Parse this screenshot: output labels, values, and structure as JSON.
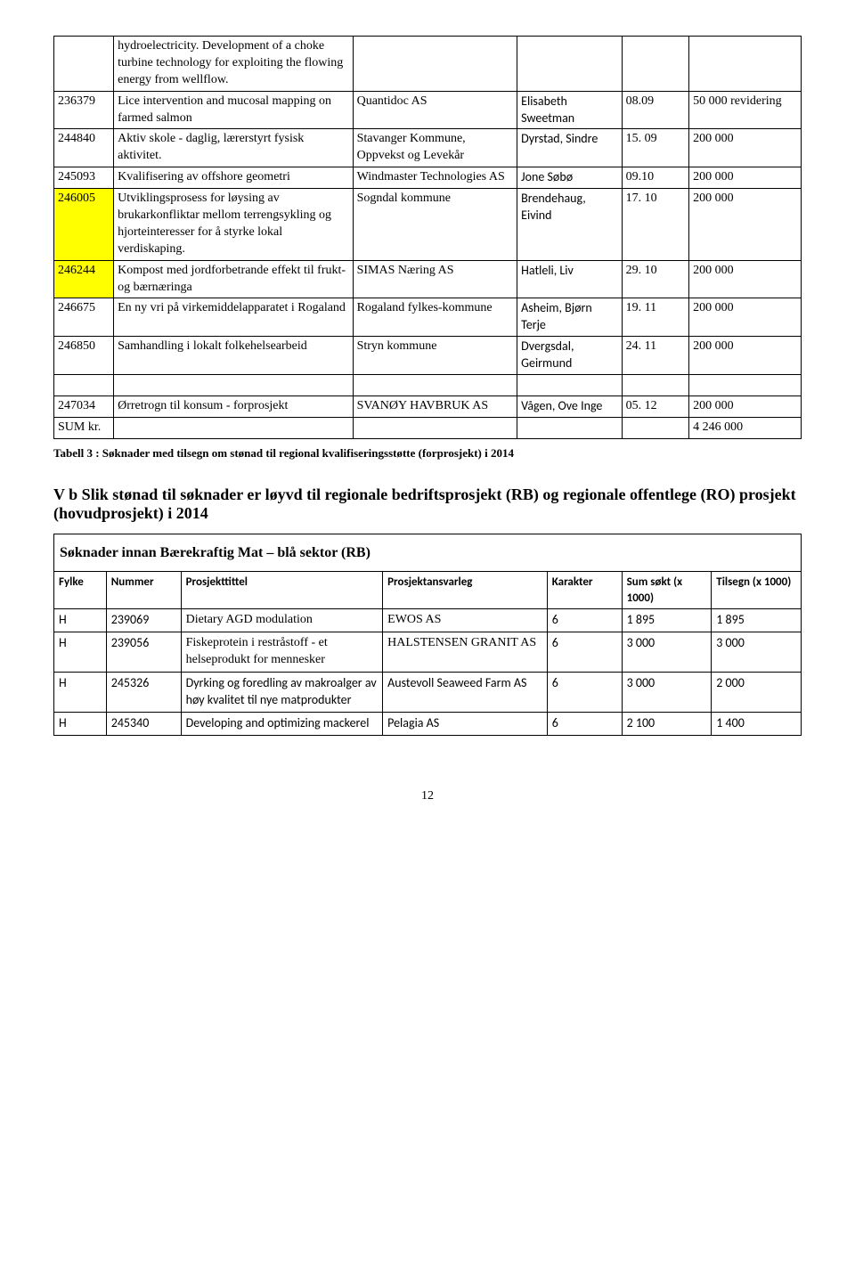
{
  "colors": {
    "background": "#ffffff",
    "text": "#000000",
    "border": "#000000",
    "highlight": "#ffff00"
  },
  "typography": {
    "body_family": "Times New Roman",
    "sans_family": "Calibri",
    "body_size_pt": 11,
    "caption_size_pt": 10,
    "heading_size_pt": 14
  },
  "t1": {
    "columns": 6,
    "rows": [
      {
        "id": "",
        "desc": "hydroelectricity. Development of a choke turbine technology for exploiting the flowing energy from wellflow.",
        "org": "",
        "person": "",
        "date": "",
        "amount": ""
      },
      {
        "id": "236379",
        "desc": "Lice intervention and mucosal mapping on farmed salmon",
        "org": "Quantidoc AS",
        "person": "Elisabeth Sweetman",
        "date": "08.09",
        "amount": "50 000 revidering"
      },
      {
        "id": "244840",
        "desc": "Aktiv skole - daglig, lærerstyrt fysisk aktivitet.",
        "org": "Stavanger Kommune, Oppvekst og Levekår",
        "person": "Dyrstad, Sindre",
        "date": "15. 09",
        "amount": "200 000"
      },
      {
        "id": "245093",
        "desc": "Kvalifisering av offshore geometri",
        "org": "Windmaster Technologies AS",
        "person": "Jone Søbø",
        "date": "09.10",
        "amount": "200 000"
      },
      {
        "id": "246005",
        "desc": "Utviklingsprosess for løysing av brukarkonfliktar mellom terrengsykling og hjorteinteresser for å styrke lokal verdiskaping.",
        "org": "Sogndal kommune",
        "person": "Brendehaug, Eivind",
        "date": "17. 10",
        "amount": "200 000",
        "hl": true
      },
      {
        "id": "246244",
        "desc": "Kompost med jordforbetrande effekt til frukt- og bærnæringa",
        "org": "SIMAS Næring AS",
        "person": "Hatleli, Liv",
        "date": "29. 10",
        "amount": "200 000",
        "hl": true
      },
      {
        "id": "246675",
        "desc": "En ny vri på virkemiddelapparatet i Rogaland",
        "org": "Rogaland fylkes-kommune",
        "person": "Asheim, Bjørn Terje",
        "date": "19. 11",
        "amount": "200 000"
      },
      {
        "id": "246850",
        "desc": "Samhandling i lokalt folkehelsearbeid",
        "org": "Stryn kommune",
        "person": "Dvergsdal, Geirmund",
        "date": "24. 11",
        "amount": "200 000"
      },
      {
        "id": "247034",
        "desc": "Ørretrogn til konsum - forprosjekt",
        "org": "SVANØY HAVBRUK AS",
        "person": "Vågen, Ove Inge",
        "date": "05. 12",
        "amount": "200 000"
      },
      {
        "id": "SUM kr.",
        "desc": "",
        "org": "",
        "person": "",
        "date": "",
        "amount": "4 246 000"
      }
    ]
  },
  "caption1": "Tabell 3 : Søknader med tilsegn om stønad til regional kvalifiseringsstøtte (forprosjekt) i 2014",
  "section_title": "V b    Slik stønad til søknader er løyvd til regionale bedriftsprosjekt (RB) og regionale offentlege (RO) prosjekt (hovudprosjekt) i 2014",
  "t2": {
    "subheading": "Søknader innan Bærekraftig Mat – blå sektor (RB)",
    "headers": [
      "Fylke",
      "Nummer",
      "Prosjekttittel",
      "Prosjektansvarleg",
      "Karakter",
      "Sum søkt (x 1000)",
      "Tilsegn (x 1000)"
    ],
    "rows": [
      {
        "f": "H",
        "n": "239069",
        "t": "Dietary AGD modulation",
        "p": "EWOS AS",
        "k": "6",
        "s": "1 895",
        "ts": "1 895"
      },
      {
        "f": "H",
        "n": "239056",
        "t": "Fiskeprotein i restråstoff - et helseprodukt for mennesker",
        "p": "HALSTENSEN GRANIT AS",
        "k": "6",
        "s": "3 000",
        "ts": "3 000"
      },
      {
        "f": "H",
        "n": "245326",
        "t": "Dyrking og foredling av makroalger av høy kvalitet til nye matprodukter",
        "p": "Austevoll Seaweed Farm AS",
        "k": "6",
        "s": "3 000",
        "ts": "2 000"
      },
      {
        "f": "H",
        "n": "245340",
        "t": "Developing and optimizing mackerel",
        "p": "Pelagia AS",
        "k": "6",
        "s": "2 100",
        "ts": "1 400"
      }
    ]
  },
  "page_number": "12"
}
